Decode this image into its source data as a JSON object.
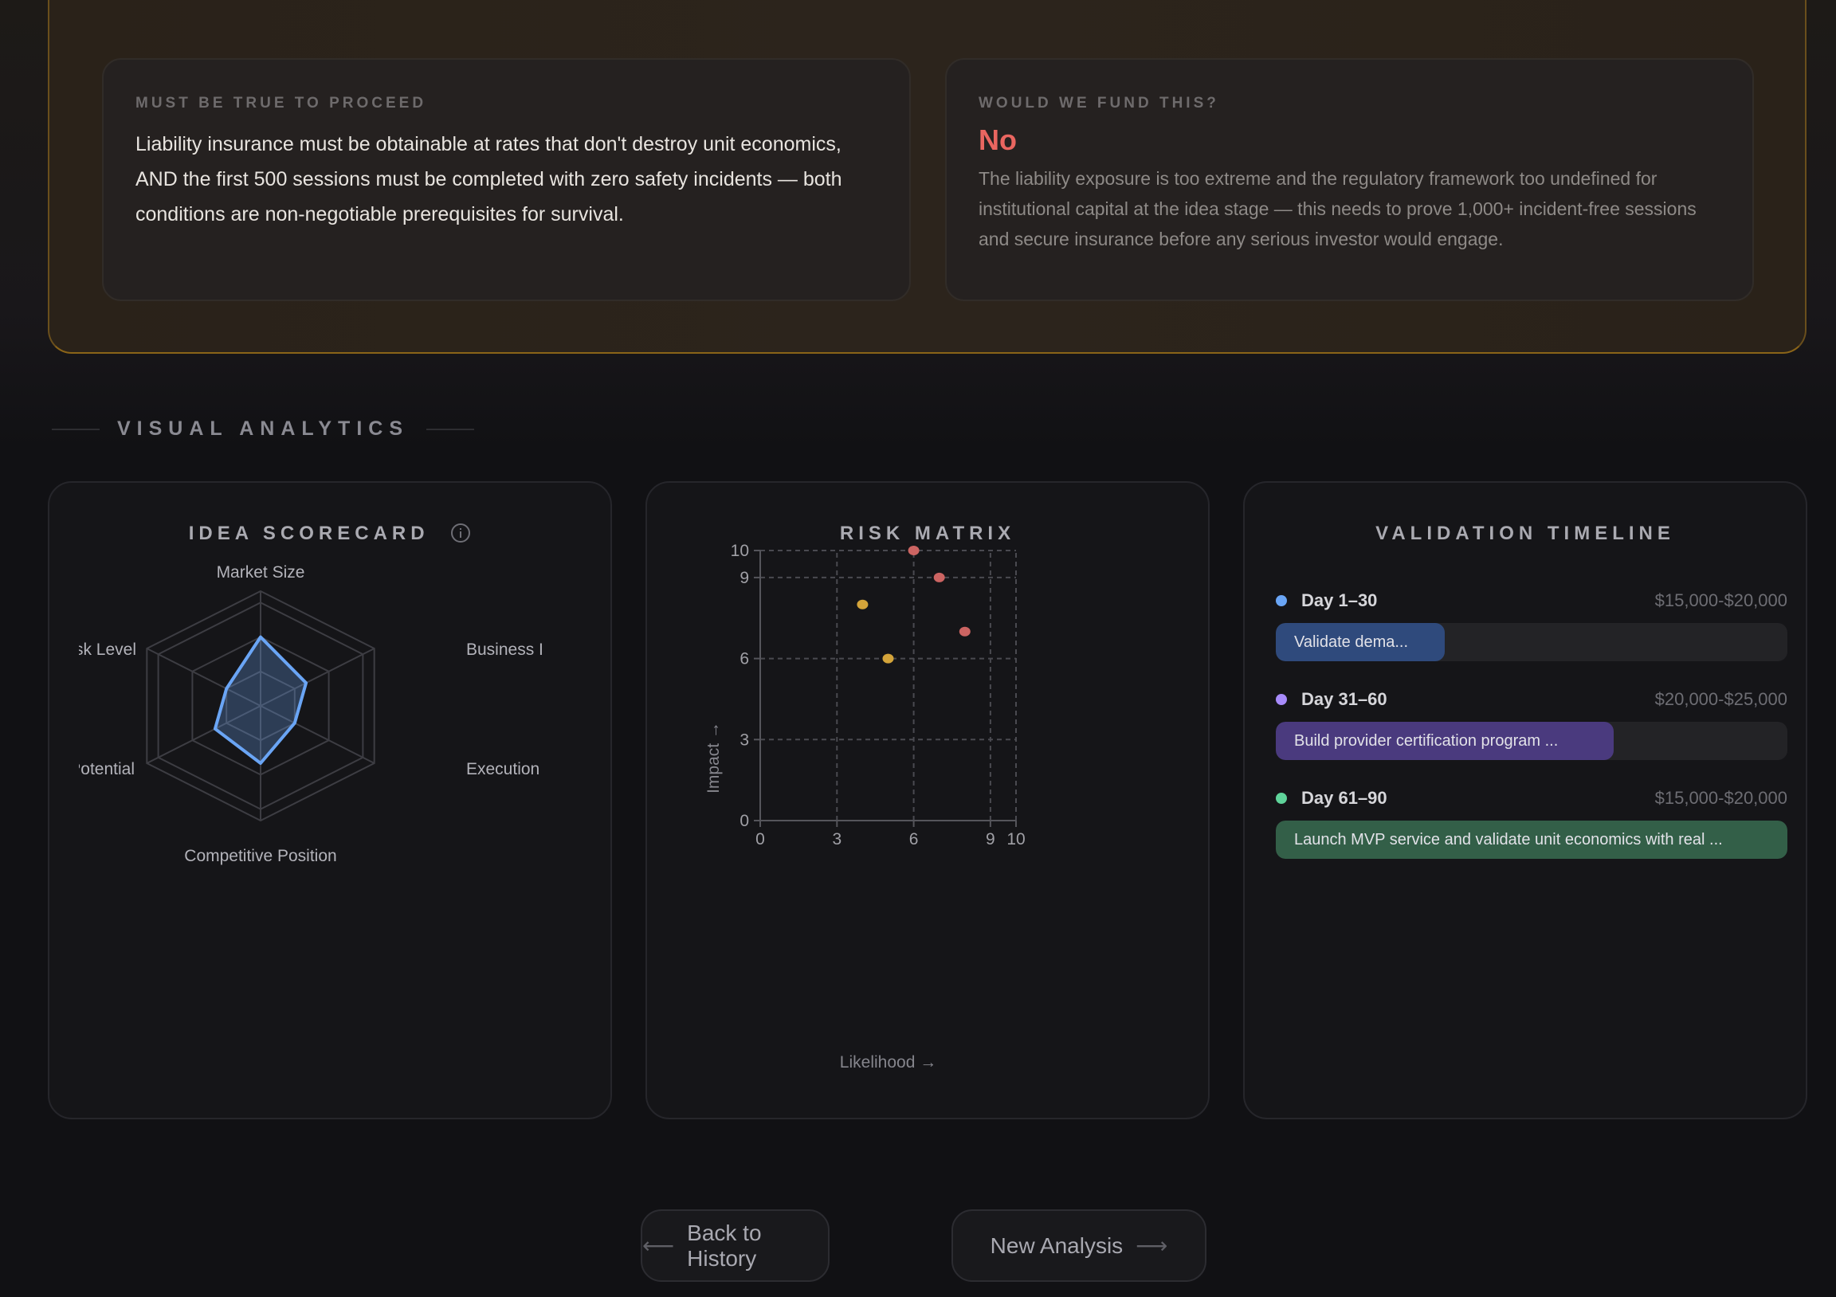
{
  "verdict_panel": {
    "must_be_true": {
      "label": "MUST BE TRUE TO PROCEED",
      "text": "Liability insurance must be obtainable at rates that don't destroy unit economics, AND the first 500 sessions must be completed with zero safety incidents — both conditions are non-negotiable prerequisites for survival."
    },
    "fund": {
      "label": "WOULD WE FUND THIS?",
      "answer": "No",
      "answer_color": "#ea6660",
      "text": "The liability exposure is too extreme and the regulatory framework too undefined for institutional capital at the idea stage — this needs to prove 1,000+ incident-free sessions and secure insurance before any serious investor would engage."
    }
  },
  "section_title": "VISUAL ANALYTICS",
  "chart_data": [
    {
      "type": "radar",
      "title": "IDEA SCORECARD",
      "info_icon": "info-circle-icon",
      "axes": [
        "Market Size",
        "Business Model",
        "Execution",
        "Competitive Position",
        "Potential",
        "Risk Level"
      ],
      "axis_labels_shown": [
        "Market Size",
        "Business I",
        "Execution",
        "Competitive Position",
        "Potential",
        "Risk Level"
      ],
      "values": [
        6,
        4,
        3,
        5,
        4,
        3
      ],
      "range": [
        0,
        10
      ],
      "rings": [
        3,
        6,
        9,
        10
      ],
      "color": "#6aa5f5"
    },
    {
      "type": "scatter",
      "title": "RISK MATRIX",
      "xlabel": "Likelihood →",
      "ylabel": "Impact →",
      "xlim": [
        0,
        10
      ],
      "ylim": [
        0,
        10
      ],
      "xticks": [
        0,
        3,
        6,
        9,
        10
      ],
      "yticks": [
        0,
        3,
        6,
        9,
        10
      ],
      "grid": true,
      "points": [
        {
          "x": 6,
          "y": 10,
          "color": "#cc6462"
        },
        {
          "x": 7,
          "y": 9,
          "color": "#cc6462"
        },
        {
          "x": 4,
          "y": 8,
          "color": "#d4a43a"
        },
        {
          "x": 8,
          "y": 7,
          "color": "#cc6462"
        },
        {
          "x": 5,
          "y": 6,
          "color": "#d4a43a"
        }
      ]
    }
  ],
  "timeline": {
    "title": "VALIDATION TIMELINE",
    "phases": [
      {
        "day": "Day 1–30",
        "amount": "$15,000-$20,000",
        "task": "Validate dema...",
        "progress": 33,
        "dot": "#6aa5f5",
        "fill": "#2f4a7c"
      },
      {
        "day": "Day 31–60",
        "amount": "$20,000-$25,000",
        "task": "Build provider certification program ...",
        "progress": 66,
        "dot": "#a78bfa",
        "fill": "#4a3a7e"
      },
      {
        "day": "Day 61–90",
        "amount": "$15,000-$20,000",
        "task": "Launch MVP service and validate unit economics with real ...",
        "progress": 100,
        "dot": "#5fd39a",
        "fill": "#335f48"
      }
    ]
  },
  "actions": {
    "back": "Back to History",
    "back_icon": "arrow-left-icon",
    "new": "New Analysis",
    "new_icon": "arrow-right-icon"
  }
}
